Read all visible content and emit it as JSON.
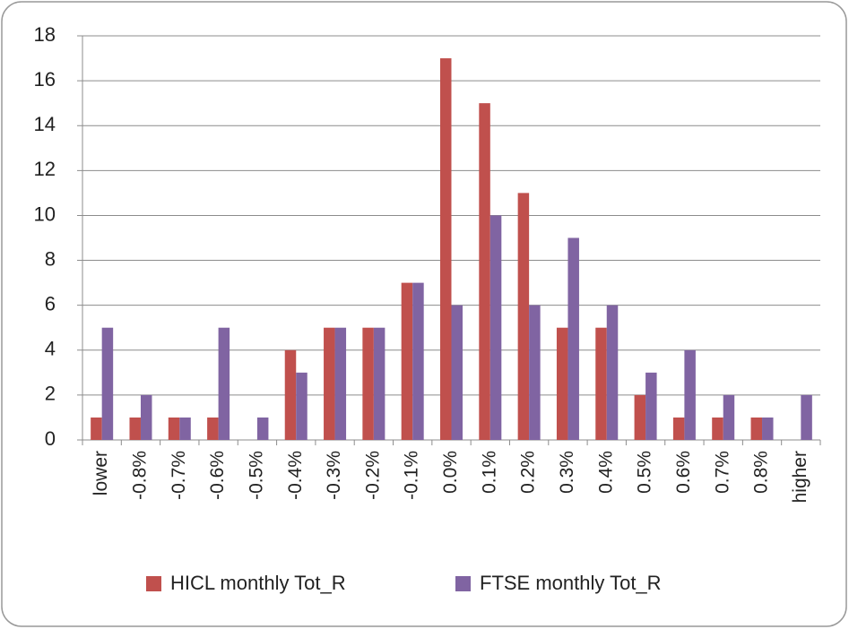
{
  "chart_data": {
    "type": "bar",
    "categories": [
      "lower",
      "-0.8%",
      "-0.7%",
      "-0.6%",
      "-0.5%",
      "-0.4%",
      "-0.3%",
      "-0.2%",
      "-0.1%",
      "0.0%",
      "0.1%",
      "0.2%",
      "0.3%",
      "0.4%",
      "0.5%",
      "0.6%",
      "0.7%",
      "0.8%",
      "higher"
    ],
    "series": [
      {
        "name": "HICL monthly Tot_R",
        "color": "#c0504d",
        "values": [
          1,
          1,
          1,
          1,
          0,
          4,
          5,
          5,
          7,
          17,
          15,
          11,
          5,
          5,
          2,
          1,
          1,
          1,
          0
        ]
      },
      {
        "name": "FTSE monthly Tot_R",
        "color": "#8064a2",
        "values": [
          5,
          2,
          1,
          5,
          1,
          3,
          5,
          5,
          7,
          6,
          10,
          6,
          9,
          6,
          3,
          4,
          2,
          1,
          2
        ]
      }
    ],
    "ylim": [
      0,
      18
    ],
    "yticks": [
      0,
      2,
      4,
      6,
      8,
      10,
      12,
      14,
      16,
      18
    ],
    "grid": true,
    "legend": "bottom"
  }
}
